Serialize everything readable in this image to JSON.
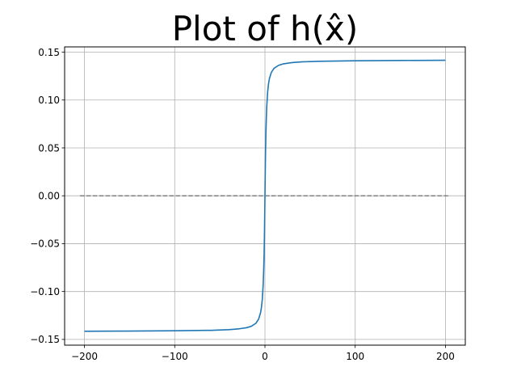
{
  "chart_data": {
    "type": "line",
    "title": "Plot of h(x̂)",
    "xlabel": "",
    "ylabel": "",
    "xlim": [
      -222,
      222
    ],
    "ylim": [
      -0.156,
      0.1555
    ],
    "x_ticks": [
      -200,
      -100,
      0,
      100,
      200
    ],
    "x_tick_labels": [
      "−200",
      "−100",
      "0",
      "100",
      "200"
    ],
    "y_ticks": [
      -0.15,
      -0.1,
      -0.05,
      0.0,
      0.05,
      0.1,
      0.15
    ],
    "y_tick_labels": [
      "−0.15",
      "−0.10",
      "−0.05",
      "0.00",
      "0.05",
      "0.10",
      "0.15"
    ],
    "grid": true,
    "series": [
      {
        "style": "solid",
        "color": "#1f77b4",
        "x": [
          -200,
          -150,
          -100,
          -60,
          -40,
          -30,
          -20,
          -15,
          -10,
          -7,
          -5,
          -4,
          -3,
          -2,
          -1.5,
          -1,
          -0.6,
          -0.3,
          0,
          0.3,
          0.6,
          1,
          1.5,
          2,
          3,
          4,
          5,
          7,
          10,
          15,
          20,
          30,
          40,
          60,
          100,
          150,
          200
        ],
        "y": [
          -0.1415,
          -0.1413,
          -0.141,
          -0.1405,
          -0.1398,
          -0.1391,
          -0.1377,
          -0.1362,
          -0.1331,
          -0.1287,
          -0.1227,
          -0.1173,
          -0.1087,
          -0.0933,
          -0.0805,
          -0.0632,
          -0.0435,
          -0.0228,
          0.0,
          0.0228,
          0.0435,
          0.0632,
          0.0805,
          0.0933,
          0.1087,
          0.1173,
          0.1227,
          0.1287,
          0.1331,
          0.1362,
          0.1377,
          0.1391,
          0.1398,
          0.1405,
          0.141,
          0.1413,
          0.1415
        ]
      },
      {
        "style": "dashed",
        "color": "#808080",
        "x": [
          -205,
          205
        ],
        "y": [
          0,
          0
        ]
      }
    ]
  },
  "colors": {
    "grid": "#b0b0b0",
    "axes": "#000000",
    "background": "#ffffff"
  }
}
